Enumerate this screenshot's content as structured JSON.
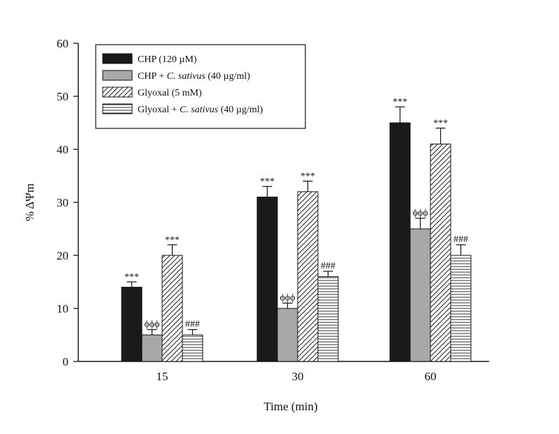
{
  "chart_data": {
    "type": "bar",
    "title": "",
    "xlabel": "Time (min)",
    "ylabel": "% ΔΨm",
    "ylim": [
      0,
      60
    ],
    "yticks": [
      0,
      10,
      20,
      30,
      40,
      50,
      60
    ],
    "categories": [
      "15",
      "30",
      "60"
    ],
    "legend_position": "top-left",
    "series": [
      {
        "key": "chp",
        "name": "CHP (120 µM)",
        "legend_parts": [
          {
            "text": "CHP (120 µM)",
            "italic": false
          }
        ],
        "values": [
          14,
          31,
          45
        ],
        "errors": [
          1,
          2,
          3
        ],
        "annotations": [
          "***",
          "***",
          "***"
        ],
        "fill": "#1a1a1a",
        "pattern": "solid"
      },
      {
        "key": "chp_cs",
        "name": "CHP + C. sativus (40 µg/ml)",
        "legend_parts": [
          {
            "text": "CHP + ",
            "italic": false
          },
          {
            "text": "C. sativus",
            "italic": true
          },
          {
            "text": " (40 µg/ml)",
            "italic": false
          }
        ],
        "values": [
          5,
          10,
          25
        ],
        "errors": [
          1,
          1,
          2
        ],
        "annotations": [
          "ϕϕϕ",
          "ϕϕϕ",
          "ϕϕϕ"
        ],
        "fill": "#a8a8a8",
        "pattern": "solid"
      },
      {
        "key": "gly",
        "name": "Glyoxal (5 mM)",
        "legend_parts": [
          {
            "text": "Glyoxal (5 mM)",
            "italic": false
          }
        ],
        "values": [
          20,
          32,
          41
        ],
        "errors": [
          2,
          2,
          3
        ],
        "annotations": [
          "***",
          "***",
          "***"
        ],
        "fill": "#ffffff",
        "pattern": "diagonal"
      },
      {
        "key": "gly_cs",
        "name": "Glyoxal + C. sativus (40 µg/ml)",
        "legend_parts": [
          {
            "text": "Glyoxal + ",
            "italic": false
          },
          {
            "text": "C. sativus",
            "italic": true
          },
          {
            "text": " (40 µg/ml)",
            "italic": false
          }
        ],
        "values": [
          5,
          16,
          20
        ],
        "errors": [
          1,
          1,
          2
        ],
        "annotations": [
          "###",
          "###",
          "###"
        ],
        "fill": "#ffffff",
        "pattern": "horizontal"
      }
    ]
  }
}
